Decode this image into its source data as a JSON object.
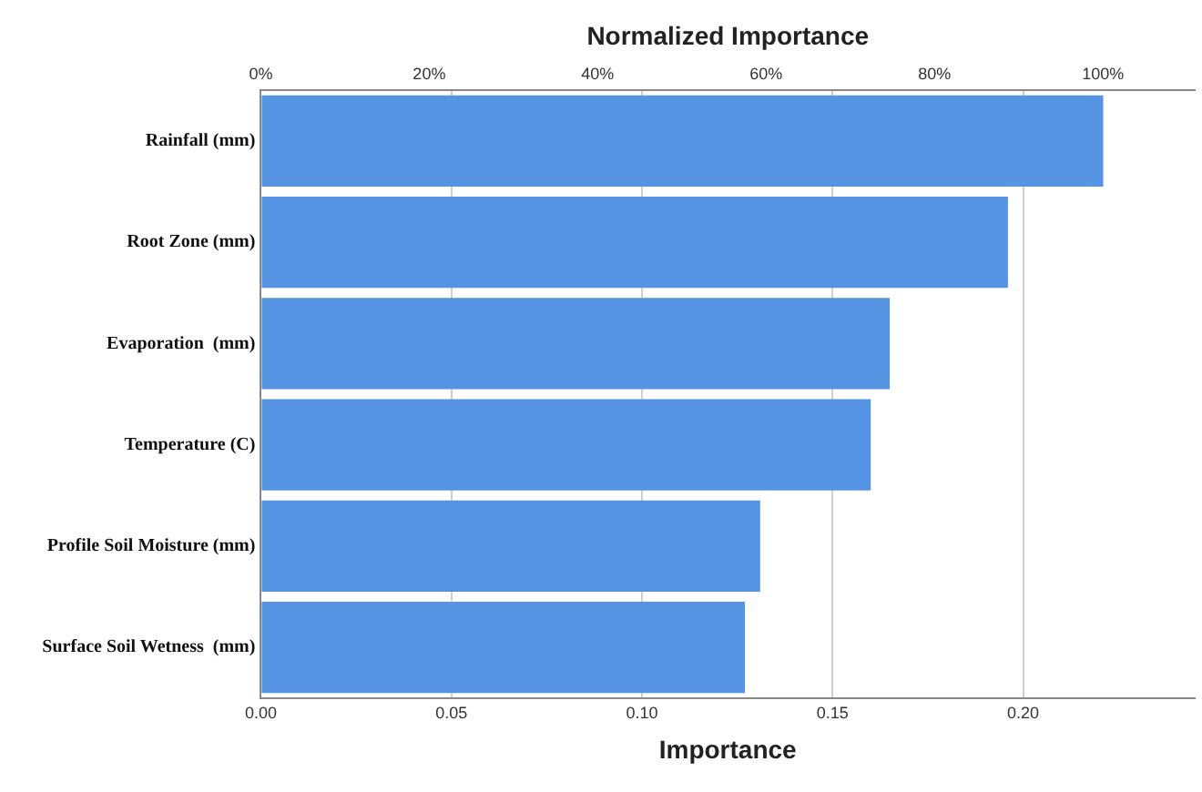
{
  "chart_data": {
    "type": "bar",
    "orientation": "horizontal",
    "categories": [
      "Rainfall (mm)",
      "Root Zone (mm)",
      "Evaporation  (mm)",
      "Temperature (C)",
      "Profile Soil Moisture (mm)",
      "Surface Soil Wetness  (mm)"
    ],
    "values": [
      0.221,
      0.196,
      0.165,
      0.16,
      0.131,
      0.127
    ],
    "color": "#5594e2",
    "xlabel": "Importance",
    "x2label": "Normalized Importance",
    "xlim": [
      0,
      0.245
    ],
    "xticks": [
      {
        "value": 0,
        "label": "0.00"
      },
      {
        "value": 0.05,
        "label": "0.05"
      },
      {
        "value": 0.1,
        "label": "0.10"
      },
      {
        "value": 0.15,
        "label": "0.15"
      },
      {
        "value": 0.2,
        "label": "0.20"
      }
    ],
    "x2lim": [
      0,
      110.9
    ],
    "x2ticks": [
      {
        "value": 0,
        "label": "0%"
      },
      {
        "value": 20,
        "label": "20%"
      },
      {
        "value": 40,
        "label": "40%"
      },
      {
        "value": 60,
        "label": "60%"
      },
      {
        "value": 80,
        "label": "80%"
      },
      {
        "value": 100,
        "label": "100%"
      }
    ],
    "grid": "x",
    "legend": false
  }
}
